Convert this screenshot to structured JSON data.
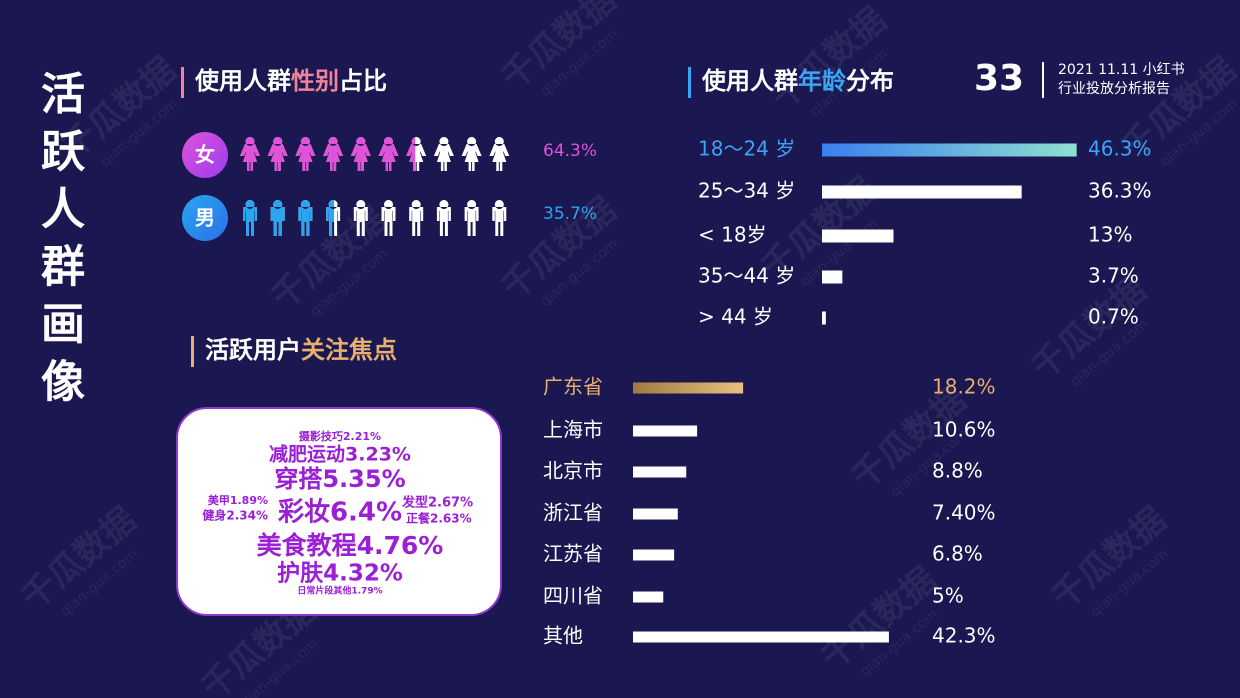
{
  "page": {
    "title": "活跃人群画像",
    "page_number": "33",
    "report": [
      "2021 11.11 小红书",
      "行业投放分析报告"
    ],
    "watermark": "千瓜数据",
    "watermark_url": "qian-gua.com"
  },
  "chart_data": [
    {
      "type": "pictogram",
      "title_parts": [
        "使用人群",
        "性别",
        "占比"
      ],
      "title_color": "#f0829a",
      "categories": [
        "女",
        "男"
      ],
      "values": [
        64.3,
        35.7
      ],
      "value_labels": [
        "64.3%",
        "35.7%"
      ],
      "colors": [
        "#e052d8",
        "#2aa6f0"
      ]
    },
    {
      "type": "hbar",
      "title_parts": [
        "使用人群",
        "年龄",
        "分布"
      ],
      "title_color": "#3aa5f5",
      "categories": [
        "18～24 岁",
        "25～34 岁",
        "< 18岁",
        "35～44 岁",
        "> 44 岁"
      ],
      "values": [
        46.3,
        36.3,
        13,
        3.7,
        0.7
      ],
      "value_labels": [
        "46.3%",
        "36.3%",
        "13%",
        "3.7%",
        "0.7%"
      ],
      "xlim": [
        0,
        50
      ],
      "color": "#ffffff",
      "highlight_colors": [
        "#3a7ff0",
        "#8fe0d0"
      ],
      "highlight_label_color": "#3aa5f5"
    },
    {
      "type": "hbar",
      "categories": [
        "广东省",
        "上海市",
        "北京市",
        "浙江省",
        "江苏省",
        "四川省",
        "其他"
      ],
      "values": [
        18.2,
        10.6,
        8.8,
        7.4,
        6.8,
        5,
        42.3
      ],
      "value_labels": [
        "18.2%",
        "10.6%",
        "8.8%",
        "7.40%",
        "6.8%",
        "5%",
        "42.3%"
      ],
      "xlim": [
        0,
        50
      ],
      "color": "#ffffff",
      "highlight_colors": [
        "#a07a40",
        "#e8c080"
      ],
      "highlight_label_color": "#e8b070"
    }
  ],
  "word_cloud": {
    "title_parts": [
      "活跃用户",
      "关注焦点"
    ],
    "title_color": "#e8b070",
    "color": "#9b1fd6",
    "items": [
      "摄影技巧2.21%",
      "减肥运动3.23%",
      "穿搭5.35%",
      "美甲1.89%",
      "健身2.34%",
      "彩妆6.4%",
      "发型2.67%",
      "正餐2.63%",
      "美食教程4.76%",
      "护肤4.32%",
      "日常片段其他1.79%"
    ]
  }
}
